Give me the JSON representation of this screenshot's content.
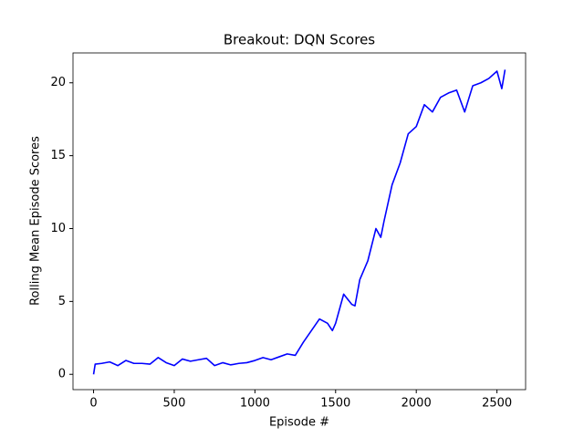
{
  "chart_data": {
    "type": "line",
    "title": "Breakout: DQN Scores",
    "xlabel": "Episode #",
    "ylabel": "Rolling Mean Episode Scores",
    "x": [
      0,
      10,
      50,
      100,
      150,
      200,
      250,
      300,
      350,
      400,
      450,
      500,
      550,
      600,
      650,
      700,
      750,
      800,
      850,
      900,
      950,
      1000,
      1050,
      1100,
      1150,
      1200,
      1250,
      1300,
      1350,
      1400,
      1450,
      1480,
      1500,
      1550,
      1600,
      1620,
      1650,
      1700,
      1750,
      1780,
      1800,
      1850,
      1900,
      1950,
      2000,
      2050,
      2100,
      2150,
      2200,
      2250,
      2300,
      2350,
      2400,
      2450,
      2500,
      2530,
      2550
    ],
    "series": [
      {
        "name": "Rolling Mean Episode Scores",
        "color": "#0000ff",
        "values": [
          0,
          0.7,
          0.75,
          0.85,
          0.6,
          0.95,
          0.75,
          0.75,
          0.7,
          1.15,
          0.8,
          0.6,
          1.05,
          0.9,
          1.0,
          1.1,
          0.6,
          0.8,
          0.65,
          0.75,
          0.8,
          0.95,
          1.15,
          1.0,
          1.2,
          1.4,
          1.3,
          2.2,
          3.0,
          3.8,
          3.5,
          3.0,
          3.5,
          5.5,
          4.8,
          4.7,
          6.5,
          7.8,
          10.0,
          9.4,
          10.5,
          13.0,
          14.5,
          16.5,
          17.0,
          18.5,
          18.0,
          19.0,
          19.3,
          19.5,
          18.0,
          19.8,
          20.0,
          20.3,
          20.8,
          19.6,
          20.9
        ]
      }
    ],
    "xlim": [
      -127.5,
      2677.5
    ],
    "ylim": [
      -1.05,
      22.05
    ],
    "xticks": [
      0,
      500,
      1000,
      1500,
      2000,
      2500
    ],
    "yticks": [
      0,
      5,
      10,
      15,
      20
    ],
    "grid": false
  }
}
